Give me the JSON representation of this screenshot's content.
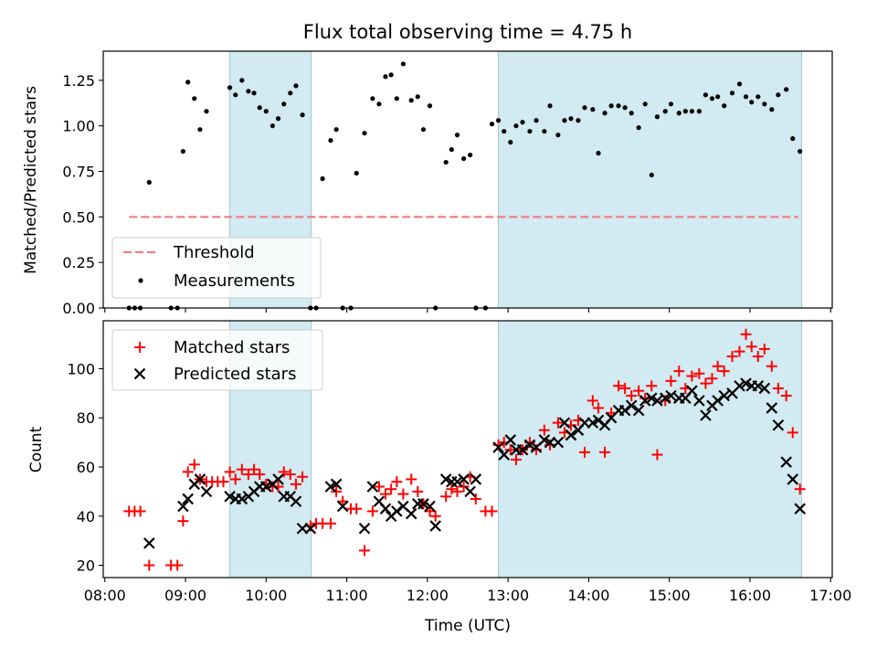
{
  "colors": {
    "threshold": "#f08080",
    "measurement": "#000000",
    "matched": "#ff0000",
    "predicted": "#000000",
    "shade": "#add8e6"
  },
  "chart_data": [
    {
      "type": "scatter",
      "title": "Flux total observing time = 4.75 h",
      "xlabel": "",
      "ylabel": "Matched/Predicted stars",
      "xlim": [
        7.98,
        17.02
      ],
      "ylim": [
        0.0,
        1.41
      ],
      "yticks": [
        0.0,
        0.25,
        0.5,
        0.75,
        1.0,
        1.25
      ],
      "ytick_labels": [
        "0.00",
        "0.25",
        "0.50",
        "0.75",
        "1.00",
        "1.25"
      ],
      "shaded_intervals": [
        [
          9.55,
          10.56
        ],
        [
          12.88,
          16.64
        ]
      ],
      "threshold": {
        "name": "Threshold",
        "y": 0.5,
        "x": [
          8.3,
          16.6
        ]
      },
      "legend": {
        "placement": "lower-left",
        "entries": [
          "Threshold",
          "Measurements"
        ]
      },
      "series": [
        {
          "name": "Measurements",
          "marker": "dot",
          "x": [
            8.3,
            8.37,
            8.44,
            8.55,
            8.82,
            8.9,
            8.97,
            9.03,
            9.11,
            9.18,
            9.26,
            9.55,
            9.62,
            9.7,
            9.78,
            9.85,
            9.92,
            10.0,
            10.08,
            10.15,
            10.22,
            10.3,
            10.37,
            10.45,
            10.55,
            10.62,
            10.7,
            10.8,
            10.87,
            10.95,
            11.05,
            11.12,
            11.22,
            11.32,
            11.4,
            11.48,
            11.55,
            11.62,
            11.7,
            11.8,
            11.88,
            11.95,
            12.03,
            12.1,
            12.23,
            12.3,
            12.37,
            12.45,
            12.53,
            12.6,
            12.72,
            12.8,
            12.88,
            12.95,
            13.03,
            13.1,
            13.18,
            13.27,
            13.35,
            13.45,
            13.52,
            13.62,
            13.7,
            13.78,
            13.87,
            13.95,
            14.05,
            14.12,
            14.2,
            14.28,
            14.37,
            14.45,
            14.53,
            14.62,
            14.7,
            14.78,
            14.85,
            14.95,
            15.02,
            15.12,
            15.2,
            15.28,
            15.37,
            15.45,
            15.53,
            15.6,
            15.68,
            15.78,
            15.87,
            15.95,
            16.02,
            16.1,
            16.18,
            16.27,
            16.35,
            16.45,
            16.53,
            16.62
          ],
          "y": [
            0.0,
            0.0,
            0.0,
            0.69,
            0.0,
            0.0,
            0.86,
            1.24,
            1.15,
            0.98,
            1.08,
            1.21,
            1.17,
            1.25,
            1.19,
            1.18,
            1.1,
            1.08,
            1.0,
            1.04,
            1.12,
            1.18,
            1.22,
            1.06,
            0.0,
            0.0,
            0.71,
            0.92,
            0.98,
            0.0,
            0.0,
            0.74,
            0.96,
            1.15,
            1.12,
            1.27,
            1.28,
            1.15,
            1.34,
            1.14,
            1.16,
            0.98,
            1.11,
            0.0,
            0.8,
            0.87,
            0.95,
            0.82,
            0.84,
            0.0,
            0.0,
            1.01,
            1.03,
            0.97,
            0.91,
            1.0,
            1.02,
            0.97,
            1.03,
            0.97,
            1.11,
            0.95,
            1.03,
            1.04,
            1.03,
            1.1,
            1.09,
            0.85,
            1.07,
            1.11,
            1.11,
            1.1,
            1.07,
            0.99,
            1.12,
            0.73,
            1.05,
            1.08,
            1.12,
            1.07,
            1.08,
            1.08,
            1.08,
            1.17,
            1.15,
            1.16,
            1.11,
            1.18,
            1.23,
            1.16,
            1.13,
            1.16,
            1.12,
            1.09,
            1.17,
            1.2,
            0.93,
            0.86
          ]
        }
      ]
    },
    {
      "type": "scatter",
      "title": "",
      "xlabel": "Time (UTC)",
      "ylabel": "Count",
      "xlim": [
        7.98,
        17.02
      ],
      "ylim": [
        15.0,
        119.5
      ],
      "yticks": [
        20,
        40,
        60,
        80,
        100
      ],
      "ytick_labels": [
        "20",
        "40",
        "60",
        "80",
        "100"
      ],
      "xticks": [
        8,
        9,
        10,
        11,
        12,
        13,
        14,
        15,
        16,
        17
      ],
      "xtick_labels": [
        "08:00",
        "09:00",
        "10:00",
        "11:00",
        "12:00",
        "13:00",
        "14:00",
        "15:00",
        "16:00",
        "17:00"
      ],
      "shaded_intervals": [
        [
          9.55,
          10.56
        ],
        [
          12.88,
          16.64
        ]
      ],
      "legend": {
        "placement": "upper-left",
        "entries": [
          "Matched stars",
          "Predicted stars"
        ]
      },
      "series": [
        {
          "name": "Matched stars",
          "marker": "plus",
          "x": [
            8.3,
            8.37,
            8.44,
            8.55,
            8.82,
            8.9,
            8.97,
            9.03,
            9.11,
            9.18,
            9.26,
            9.33,
            9.4,
            9.47,
            9.55,
            9.62,
            9.7,
            9.78,
            9.85,
            9.92,
            10.0,
            10.08,
            10.15,
            10.22,
            10.3,
            10.37,
            10.45,
            10.55,
            10.62,
            10.7,
            10.8,
            10.87,
            10.95,
            11.05,
            11.12,
            11.22,
            11.32,
            11.4,
            11.48,
            11.55,
            11.62,
            11.7,
            11.8,
            11.88,
            11.95,
            12.03,
            12.1,
            12.23,
            12.3,
            12.37,
            12.45,
            12.53,
            12.6,
            12.72,
            12.8,
            12.88,
            12.95,
            13.03,
            13.1,
            13.18,
            13.27,
            13.35,
            13.45,
            13.52,
            13.62,
            13.7,
            13.78,
            13.87,
            13.95,
            14.05,
            14.12,
            14.2,
            14.28,
            14.37,
            14.45,
            14.53,
            14.62,
            14.7,
            14.78,
            14.85,
            14.95,
            15.02,
            15.12,
            15.2,
            15.28,
            15.37,
            15.45,
            15.53,
            15.6,
            15.68,
            15.78,
            15.87,
            15.95,
            16.02,
            16.1,
            16.18,
            16.27,
            16.35,
            16.45,
            16.53,
            16.62
          ],
          "y": [
            42,
            42,
            42,
            20,
            20,
            20,
            38,
            58,
            61,
            55,
            54,
            54,
            54,
            54,
            58,
            55,
            59,
            57,
            59,
            57,
            53,
            52,
            52,
            58,
            57,
            53,
            56,
            36,
            37,
            37,
            37,
            50,
            46,
            43,
            43,
            26,
            42,
            52,
            49,
            51,
            54,
            49,
            55,
            50,
            45,
            42,
            40,
            48,
            51,
            50,
            52,
            56,
            47,
            42,
            42,
            69,
            70,
            67,
            63,
            67,
            70,
            67,
            75,
            69,
            78,
            74,
            77,
            79,
            66,
            87,
            84,
            66,
            82,
            93,
            92,
            89,
            91,
            88,
            93,
            65,
            87,
            95,
            99,
            92,
            97,
            98,
            94,
            96,
            101,
            99,
            105,
            107,
            114,
            109,
            105,
            108,
            101,
            92,
            89,
            74,
            51
          ]
        },
        {
          "name": "Predicted stars",
          "marker": "x",
          "x": [
            8.55,
            8.97,
            9.03,
            9.11,
            9.18,
            9.26,
            9.55,
            9.62,
            9.7,
            9.78,
            9.85,
            9.92,
            10.0,
            10.08,
            10.15,
            10.22,
            10.3,
            10.37,
            10.45,
            10.55,
            10.8,
            10.87,
            10.95,
            11.22,
            11.32,
            11.4,
            11.48,
            11.55,
            11.62,
            11.7,
            11.8,
            11.88,
            11.95,
            12.03,
            12.1,
            12.23,
            12.3,
            12.37,
            12.45,
            12.53,
            12.6,
            12.88,
            12.95,
            13.03,
            13.1,
            13.18,
            13.27,
            13.35,
            13.45,
            13.52,
            13.62,
            13.7,
            13.78,
            13.87,
            13.95,
            14.05,
            14.12,
            14.2,
            14.28,
            14.37,
            14.45,
            14.53,
            14.62,
            14.7,
            14.78,
            14.85,
            14.95,
            15.02,
            15.12,
            15.2,
            15.28,
            15.37,
            15.45,
            15.53,
            15.6,
            15.68,
            15.78,
            15.87,
            15.95,
            16.02,
            16.1,
            16.18,
            16.27,
            16.35,
            16.45,
            16.53,
            16.62
          ],
          "y": [
            29,
            44,
            47,
            53,
            55,
            50,
            48,
            47,
            47,
            48,
            50,
            52,
            52,
            53,
            55,
            48,
            48,
            46,
            35,
            35,
            52,
            53,
            44,
            35,
            52,
            46,
            43,
            40,
            42,
            44,
            41,
            45,
            45,
            44,
            36,
            55,
            54,
            54,
            55,
            50,
            55,
            68,
            65,
            71,
            67,
            67,
            69,
            68,
            71,
            70,
            70,
            78,
            73,
            75,
            78,
            78,
            79,
            77,
            80,
            83,
            83,
            85,
            83,
            87,
            88,
            87,
            88,
            89,
            88,
            88,
            91,
            87,
            81,
            85,
            87,
            89,
            90,
            93,
            94,
            93,
            93,
            92,
            84,
            77,
            62,
            55,
            43
          ]
        }
      ]
    }
  ]
}
